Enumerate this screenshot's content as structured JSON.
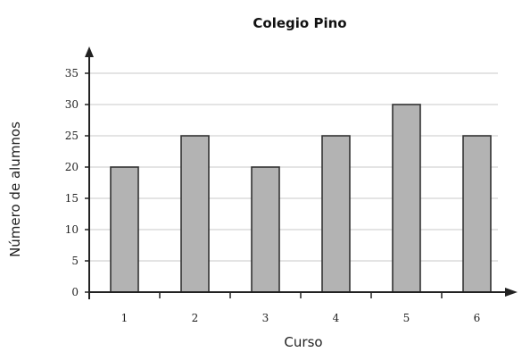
{
  "chart_data": {
    "type": "bar",
    "title": "Colegio Pino",
    "xlabel": "Curso",
    "ylabel": "Número de alumnos",
    "categories": [
      "1",
      "2",
      "3",
      "4",
      "5",
      "6"
    ],
    "values": [
      20,
      25,
      20,
      25,
      30,
      25
    ],
    "ylim": [
      0,
      35
    ],
    "yticks": [
      "0",
      "5",
      "10",
      "15",
      "20",
      "25",
      "30",
      "35"
    ],
    "grid": "horizontal",
    "legend": "none",
    "colors": {
      "bar_fill": "#b3b3b3",
      "bar_stroke": "#333333",
      "grid": "#c8c8c8",
      "axis": "#222222"
    }
  }
}
